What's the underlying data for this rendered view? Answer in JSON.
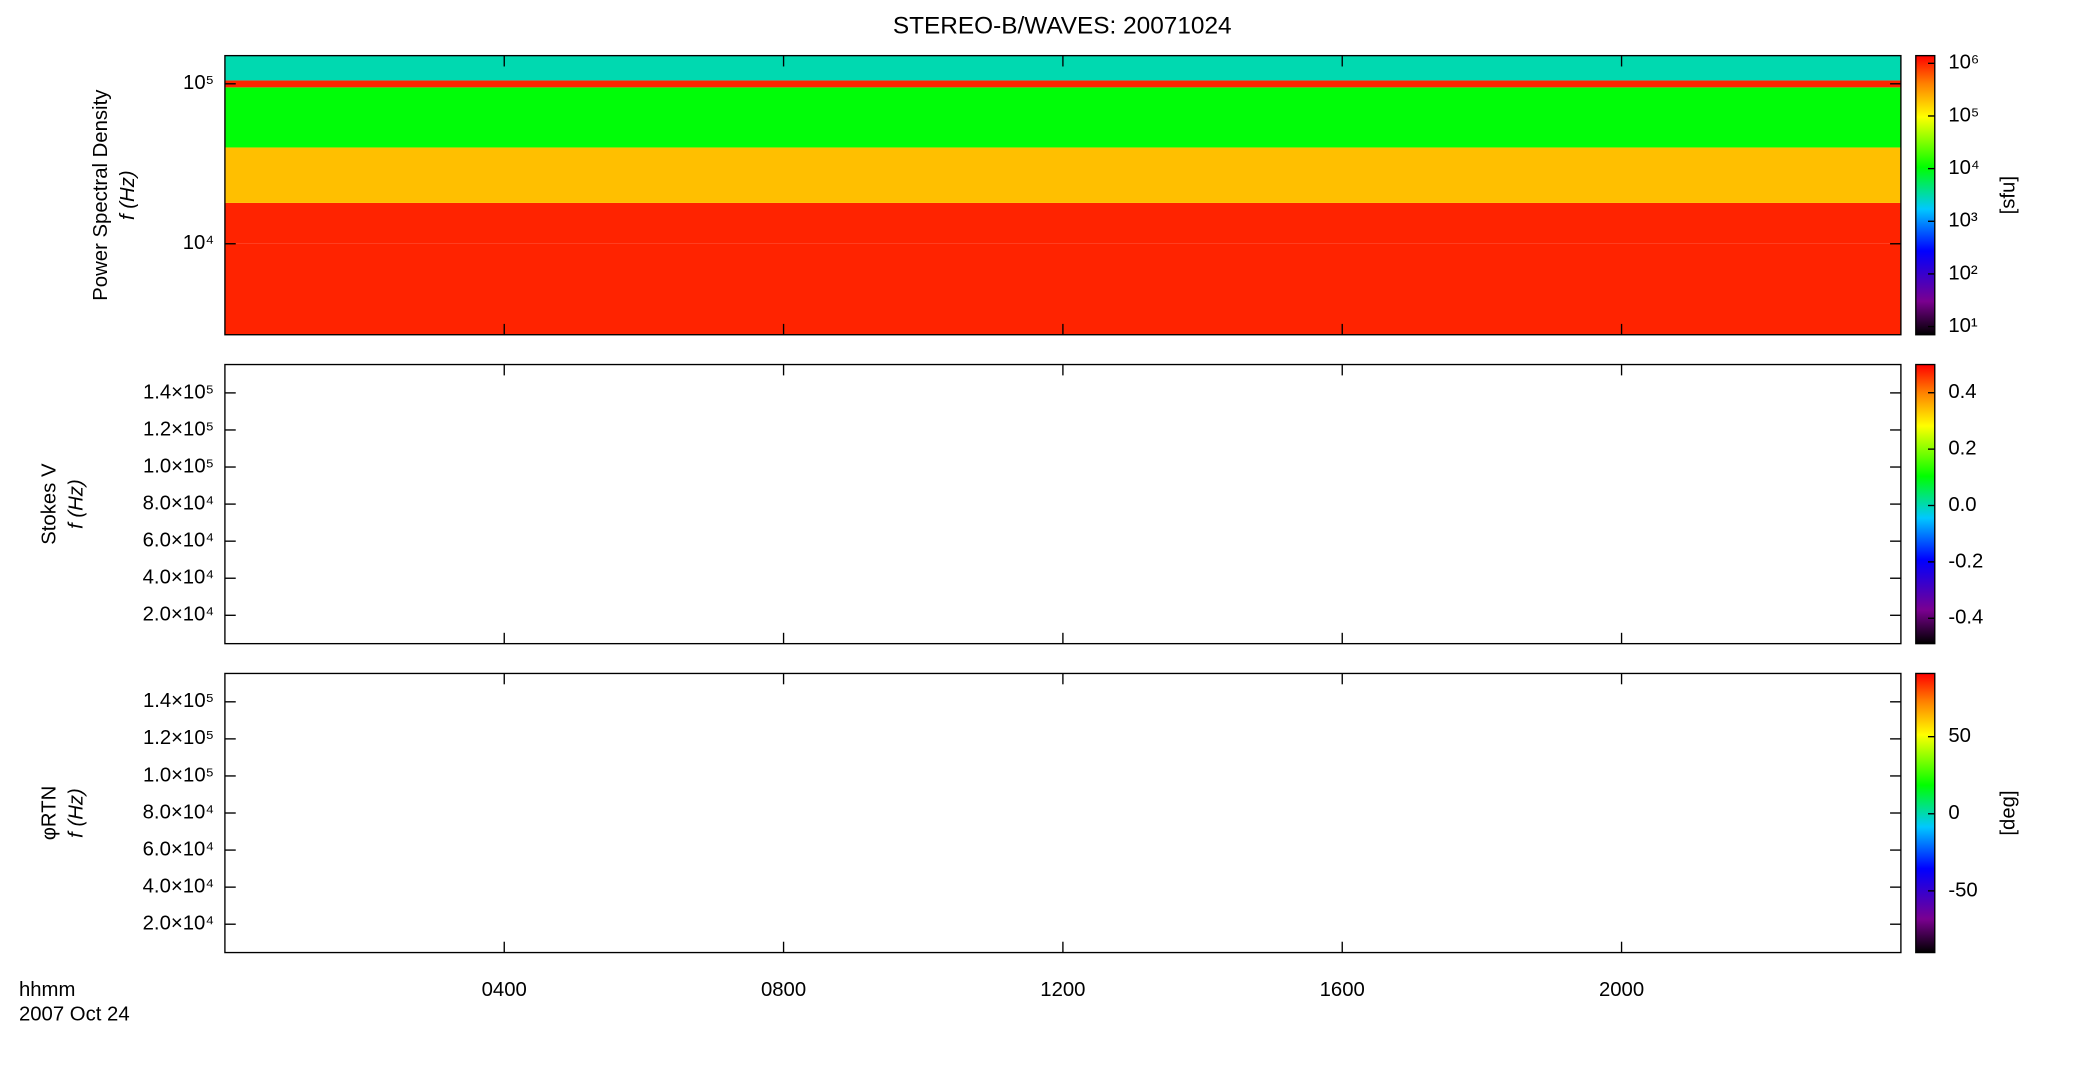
{
  "chart_data": [
    {
      "type": "heatmap",
      "title": "STEREO-B/WAVES: 20071024",
      "ylabel": [
        "Power Spectral Density",
        "f (Hz)"
      ],
      "xlim": [
        0,
        24
      ],
      "ylim": [
        2700,
        150000
      ],
      "log_y": true,
      "yticks": [
        {
          "value": 10000,
          "label": "10⁴"
        },
        {
          "value": 100000,
          "label": "10⁵"
        }
      ],
      "y_bins": [
        2700,
        10000,
        18000,
        40000,
        95000,
        105000,
        150000
      ],
      "values": [
        1000000,
        1000000,
        200000,
        10000,
        1000000,
        3000
      ],
      "colorbar": {
        "label": "[sfu]",
        "log": true,
        "lim": [
          7,
          1400000
        ],
        "ticks": [
          {
            "value": 10,
            "label": "10¹"
          },
          {
            "value": 100,
            "label": "10²"
          },
          {
            "value": 1000,
            "label": "10³"
          },
          {
            "value": 10000,
            "label": "10⁴"
          },
          {
            "value": 100000,
            "label": "10⁵"
          },
          {
            "value": 1000000,
            "label": "10⁶"
          }
        ]
      }
    },
    {
      "type": "heatmap",
      "ylabel": [
        "Stokes V",
        "f (Hz)"
      ],
      "xlim": [
        0,
        24
      ],
      "ylim": [
        4700,
        155300
      ],
      "log_y": false,
      "yticks": [
        {
          "value": 20000,
          "label": "2.0×10⁴"
        },
        {
          "value": 40000,
          "label": "4.0×10⁴"
        },
        {
          "value": 60000,
          "label": "6.0×10⁴"
        },
        {
          "value": 80000,
          "label": "8.0×10⁴"
        },
        {
          "value": 100000,
          "label": "1.0×10⁵"
        },
        {
          "value": 120000,
          "label": "1.2×10⁵"
        },
        {
          "value": 140000,
          "label": "1.4×10⁵"
        }
      ],
      "colorbar": {
        "log": false,
        "lim": [
          -0.49,
          0.5
        ],
        "ticks": [
          -0.4,
          -0.2,
          {
            "value": 0,
            "label": "0.0"
          },
          0.2,
          0.4
        ]
      }
    },
    {
      "type": "heatmap",
      "ylabel": [
        "φRTN",
        "f (Hz)"
      ],
      "xlim": [
        0,
        24
      ],
      "ylim": [
        4700,
        155300
      ],
      "log_y": false,
      "yticks": [
        {
          "value": 20000,
          "label": "2.0×10⁴"
        },
        {
          "value": 40000,
          "label": "4.0×10⁴"
        },
        {
          "value": 60000,
          "label": "6.0×10⁴"
        },
        {
          "value": 80000,
          "label": "8.0×10⁴"
        },
        {
          "value": 100000,
          "label": "1.0×10⁵"
        },
        {
          "value": 120000,
          "label": "1.2×10⁵"
        },
        {
          "value": 140000,
          "label": "1.4×10⁵"
        }
      ],
      "xlabel": [
        "hhmm",
        "2007 Oct 24"
      ],
      "xticks": [
        {
          "value": 4,
          "label": "0400"
        },
        {
          "value": 8,
          "label": "0800"
        },
        {
          "value": 12,
          "label": "1200"
        },
        {
          "value": 16,
          "label": "1600"
        },
        {
          "value": 20,
          "label": "2000"
        }
      ],
      "colorbar": {
        "label": "[deg]",
        "log": false,
        "lim": [
          -90,
          91
        ],
        "ticks": [
          -50,
          0,
          50
        ]
      }
    }
  ]
}
